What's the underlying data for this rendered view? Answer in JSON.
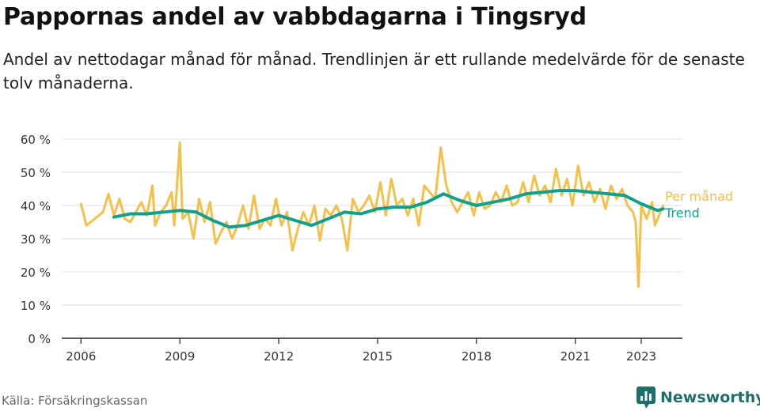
{
  "header": {
    "title": "Pappornas andel av vabbdagarna i Tingsryd",
    "subtitle": "Andel av nettodagar månad för månad. Trendlinjen är ett rullande medelvärde för de senaste tolv månaderna."
  },
  "footer": {
    "source": "Källa: Försäkringskassan",
    "brand": "Newsworthy"
  },
  "colors": {
    "monthly": "#f5c04a",
    "trend": "#12a08e",
    "grid": "#dddddd",
    "axis": "#222222",
    "brand": "#1e6f6a"
  },
  "chart_data": {
    "type": "line",
    "title": "Pappornas andel av vabbdagarna i Tingsryd",
    "xlabel": "",
    "ylabel": "",
    "ylim": [
      0,
      60
    ],
    "xlim": [
      "2005-06",
      "2024-04"
    ],
    "y_ticks": [
      0,
      10,
      20,
      30,
      40,
      50,
      60
    ],
    "y_tick_labels": [
      "0 %",
      "10 %",
      "20 %",
      "30 %",
      "40 %",
      "50 %",
      "60 %"
    ],
    "x_ticks": [
      "2006-01",
      "2009-01",
      "2012-01",
      "2015-01",
      "2018-01",
      "2021-01",
      "2023-01"
    ],
    "x_tick_labels": [
      "2006",
      "2009",
      "2012",
      "2015",
      "2018",
      "2021",
      "2023"
    ],
    "grid": true,
    "legend": "right, labels at line ends",
    "series": [
      {
        "name": "Per månad",
        "points": [
          [
            "2006-01",
            40.5
          ],
          [
            "2006-03",
            34
          ],
          [
            "2006-06",
            36
          ],
          [
            "2006-09",
            38
          ],
          [
            "2006-11",
            43.5
          ],
          [
            "2007-01",
            37
          ],
          [
            "2007-03",
            42
          ],
          [
            "2007-05",
            36
          ],
          [
            "2007-07",
            35
          ],
          [
            "2007-09",
            38
          ],
          [
            "2007-11",
            41
          ],
          [
            "2008-01",
            37
          ],
          [
            "2008-03",
            46
          ],
          [
            "2008-04",
            34
          ],
          [
            "2008-06",
            38
          ],
          [
            "2008-08",
            40
          ],
          [
            "2008-10",
            44
          ],
          [
            "2008-11",
            34
          ],
          [
            "2009-01",
            59
          ],
          [
            "2009-02",
            36
          ],
          [
            "2009-04",
            38
          ],
          [
            "2009-06",
            30
          ],
          [
            "2009-08",
            42
          ],
          [
            "2009-10",
            35
          ],
          [
            "2009-12",
            41
          ],
          [
            "2010-02",
            28.5
          ],
          [
            "2010-04",
            32
          ],
          [
            "2010-06",
            35
          ],
          [
            "2010-08",
            30
          ],
          [
            "2010-10",
            34
          ],
          [
            "2010-12",
            40
          ],
          [
            "2011-02",
            33
          ],
          [
            "2011-04",
            43
          ],
          [
            "2011-06",
            33
          ],
          [
            "2011-08",
            36
          ],
          [
            "2011-10",
            34
          ],
          [
            "2011-12",
            42
          ],
          [
            "2012-02",
            34
          ],
          [
            "2012-04",
            38
          ],
          [
            "2012-06",
            26.5
          ],
          [
            "2012-08",
            33
          ],
          [
            "2012-10",
            38
          ],
          [
            "2012-12",
            34
          ],
          [
            "2013-02",
            40
          ],
          [
            "2013-04",
            29.5
          ],
          [
            "2013-06",
            39
          ],
          [
            "2013-08",
            37
          ],
          [
            "2013-10",
            40
          ],
          [
            "2013-12",
            36
          ],
          [
            "2014-02",
            26.5
          ],
          [
            "2014-04",
            42
          ],
          [
            "2014-06",
            38
          ],
          [
            "2014-08",
            40
          ],
          [
            "2014-10",
            43
          ],
          [
            "2014-12",
            38
          ],
          [
            "2015-02",
            47
          ],
          [
            "2015-04",
            37
          ],
          [
            "2015-06",
            48
          ],
          [
            "2015-08",
            40
          ],
          [
            "2015-10",
            42
          ],
          [
            "2015-12",
            37
          ],
          [
            "2016-02",
            42
          ],
          [
            "2016-04",
            34
          ],
          [
            "2016-06",
            46
          ],
          [
            "2016-08",
            44
          ],
          [
            "2016-10",
            42
          ],
          [
            "2016-12",
            57.5
          ],
          [
            "2017-02",
            46
          ],
          [
            "2017-04",
            41
          ],
          [
            "2017-06",
            38
          ],
          [
            "2017-08",
            41
          ],
          [
            "2017-10",
            44
          ],
          [
            "2017-12",
            37
          ],
          [
            "2018-02",
            44
          ],
          [
            "2018-04",
            39
          ],
          [
            "2018-06",
            40
          ],
          [
            "2018-08",
            44
          ],
          [
            "2018-10",
            41
          ],
          [
            "2018-12",
            46
          ],
          [
            "2019-02",
            40
          ],
          [
            "2019-04",
            41
          ],
          [
            "2019-06",
            47
          ],
          [
            "2019-08",
            41
          ],
          [
            "2019-10",
            49
          ],
          [
            "2019-12",
            43
          ],
          [
            "2020-02",
            46
          ],
          [
            "2020-04",
            41
          ],
          [
            "2020-06",
            51
          ],
          [
            "2020-08",
            43
          ],
          [
            "2020-10",
            48
          ],
          [
            "2020-12",
            40
          ],
          [
            "2021-02",
            52
          ],
          [
            "2021-04",
            43
          ],
          [
            "2021-06",
            47
          ],
          [
            "2021-08",
            41
          ],
          [
            "2021-10",
            45
          ],
          [
            "2021-12",
            39
          ],
          [
            "2022-02",
            46
          ],
          [
            "2022-04",
            42
          ],
          [
            "2022-06",
            45
          ],
          [
            "2022-08",
            40
          ],
          [
            "2022-10",
            38
          ],
          [
            "2022-11",
            35
          ],
          [
            "2022-12",
            15.5
          ],
          [
            "2023-01",
            40
          ],
          [
            "2023-03",
            36
          ],
          [
            "2023-05",
            41
          ],
          [
            "2023-06",
            34
          ],
          [
            "2023-08",
            38
          ],
          [
            "2023-09",
            40
          ]
        ]
      },
      {
        "name": "Trend",
        "points": [
          [
            "2007-01",
            36.5
          ],
          [
            "2007-07",
            37.5
          ],
          [
            "2008-01",
            37.5
          ],
          [
            "2008-07",
            38
          ],
          [
            "2009-01",
            38.5
          ],
          [
            "2009-07",
            38
          ],
          [
            "2010-01",
            35.5
          ],
          [
            "2010-07",
            33.5
          ],
          [
            "2011-01",
            34
          ],
          [
            "2011-07",
            35.5
          ],
          [
            "2012-01",
            37
          ],
          [
            "2012-07",
            35.5
          ],
          [
            "2013-01",
            34
          ],
          [
            "2013-07",
            36
          ],
          [
            "2014-01",
            38
          ],
          [
            "2014-07",
            37.5
          ],
          [
            "2015-01",
            39
          ],
          [
            "2015-07",
            39.5
          ],
          [
            "2016-01",
            39.5
          ],
          [
            "2016-07",
            41
          ],
          [
            "2017-01",
            43.5
          ],
          [
            "2017-07",
            41.5
          ],
          [
            "2018-01",
            40
          ],
          [
            "2018-07",
            41
          ],
          [
            "2019-01",
            42
          ],
          [
            "2019-07",
            43.5
          ],
          [
            "2020-01",
            44
          ],
          [
            "2020-07",
            44.5
          ],
          [
            "2021-01",
            44.5
          ],
          [
            "2021-07",
            44
          ],
          [
            "2022-01",
            43.5
          ],
          [
            "2022-07",
            43
          ],
          [
            "2023-01",
            40.5
          ],
          [
            "2023-07",
            38.5
          ],
          [
            "2023-09",
            39
          ]
        ]
      }
    ]
  }
}
